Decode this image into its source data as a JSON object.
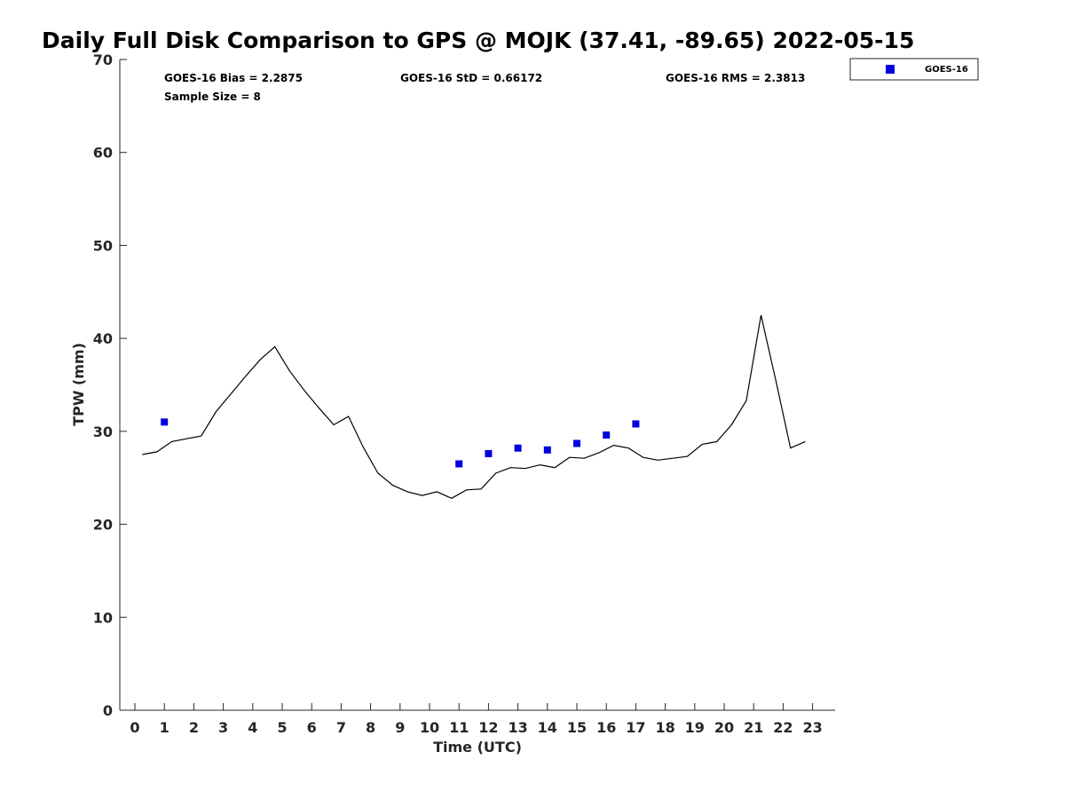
{
  "chart_data": {
    "type": "line",
    "title": "Daily Full Disk Comparison to GPS @ MOJK (37.41, -89.65) 2022-05-15",
    "xlabel": "Time (UTC)",
    "ylabel": "TPW (mm)",
    "xlim": [
      -0.5,
      23.7
    ],
    "ylim": [
      0,
      70
    ],
    "xticks": [
      0,
      1,
      2,
      3,
      4,
      5,
      6,
      7,
      8,
      9,
      10,
      11,
      12,
      13,
      14,
      15,
      16,
      17,
      18,
      19,
      20,
      21,
      22,
      23
    ],
    "yticks": [
      0,
      10,
      20,
      30,
      40,
      50,
      60,
      70
    ],
    "grid": false,
    "legend_position": "top-right",
    "stats": {
      "bias": "GOES-16 Bias = 2.2875",
      "std": "GOES-16 StD = 0.66172",
      "rms": "GOES-16 RMS = 2.3813",
      "sample_size": "Sample Size = 8"
    },
    "series": [
      {
        "kind": "line",
        "color": "#000000",
        "x": [
          0.25,
          0.75,
          1.25,
          1.75,
          2.25,
          2.75,
          3.25,
          3.75,
          4.25,
          4.75,
          5.25,
          5.75,
          6.25,
          6.75,
          7.25,
          7.75,
          8.25,
          8.75,
          9.25,
          9.75,
          10.25,
          10.75,
          11.25,
          11.75,
          12.25,
          12.75,
          13.25,
          13.75,
          14.25,
          14.75,
          15.25,
          15.75,
          16.25,
          16.75,
          17.25,
          17.75,
          18.25,
          18.75,
          19.25,
          19.75,
          20.25,
          20.75,
          21.25,
          21.75,
          22.25,
          22.75
        ],
        "y": [
          27.5,
          27.8,
          28.9,
          29.2,
          29.5,
          32.1,
          34.0,
          35.9,
          37.7,
          39.1,
          36.5,
          34.4,
          32.5,
          30.7,
          31.6,
          28.3,
          25.5,
          24.2,
          23.5,
          23.1,
          23.5,
          22.8,
          23.7,
          23.8,
          25.5,
          26.1,
          26.0,
          26.4,
          26.1,
          27.2,
          27.1,
          27.7,
          28.5,
          28.2,
          27.2,
          26.9,
          27.1,
          27.3,
          28.6,
          28.9,
          30.7,
          33.3,
          42.5,
          35.5,
          28.2,
          28.9
        ]
      },
      {
        "kind": "scatter",
        "name": "GOES-16",
        "color": "#0000dd",
        "x": [
          1,
          11,
          12,
          13,
          14,
          15,
          16,
          17
        ],
        "y": [
          31.0,
          26.5,
          27.6,
          28.2,
          28.0,
          28.7,
          29.6,
          30.8
        ]
      }
    ]
  }
}
